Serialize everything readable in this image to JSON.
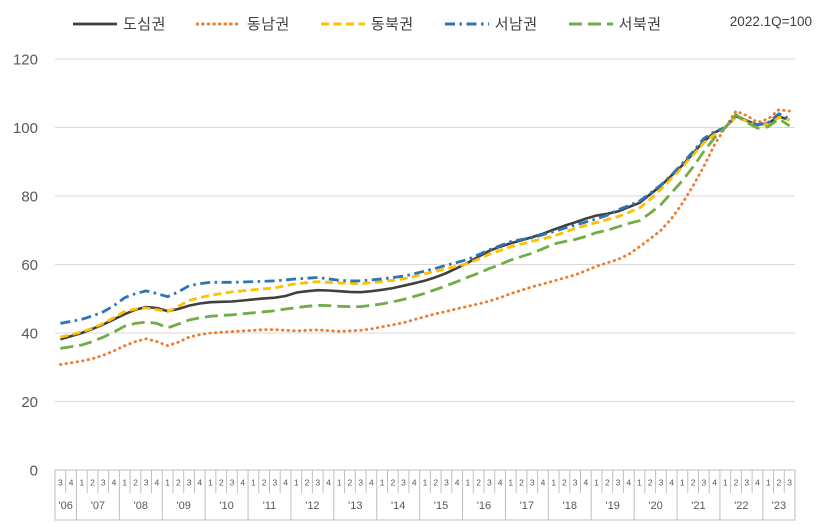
{
  "note": "2022.1Q=100",
  "colors": {
    "dosim": "#404040",
    "dongnam": "#ED7D31",
    "dongbuk": "#FFC000",
    "seonam": "#2E75B6",
    "seobuk": "#70AD47",
    "gridline": "#D9D9D9",
    "axis_box": "#BFBFBF",
    "tick_text": "#595959"
  },
  "chart_data": {
    "type": "line",
    "title": "",
    "xlabel": "",
    "ylabel": "",
    "ylim": [
      0,
      120
    ],
    "yticks": [
      0,
      20,
      40,
      60,
      80,
      100,
      120
    ],
    "grid": "horizontal",
    "legend_position": "top",
    "base_note": "2022.1Q=100",
    "x_axis": {
      "unit": "quarter",
      "years": [
        {
          "label": "'06",
          "quarters": [
            "3",
            "4"
          ]
        },
        {
          "label": "'07",
          "quarters": [
            "1",
            "2",
            "3",
            "4"
          ]
        },
        {
          "label": "'08",
          "quarters": [
            "1",
            "2",
            "3",
            "4"
          ]
        },
        {
          "label": "'09",
          "quarters": [
            "1",
            "2",
            "3",
            "4"
          ]
        },
        {
          "label": "'10",
          "quarters": [
            "1",
            "2",
            "3",
            "4"
          ]
        },
        {
          "label": "'11",
          "quarters": [
            "1",
            "2",
            "3",
            "4"
          ]
        },
        {
          "label": "'12",
          "quarters": [
            "1",
            "2",
            "3",
            "4"
          ]
        },
        {
          "label": "'13",
          "quarters": [
            "1",
            "2",
            "3",
            "4"
          ]
        },
        {
          "label": "'14",
          "quarters": [
            "1",
            "2",
            "3",
            "4"
          ]
        },
        {
          "label": "'15",
          "quarters": [
            "1",
            "2",
            "3",
            "4"
          ]
        },
        {
          "label": "'16",
          "quarters": [
            "1",
            "2",
            "3",
            "4"
          ]
        },
        {
          "label": "'17",
          "quarters": [
            "1",
            "2",
            "3",
            "4"
          ]
        },
        {
          "label": "'18",
          "quarters": [
            "1",
            "2",
            "3",
            "4"
          ]
        },
        {
          "label": "'19",
          "quarters": [
            "1",
            "2",
            "3",
            "4"
          ]
        },
        {
          "label": "'20",
          "quarters": [
            "1",
            "2",
            "3",
            "4"
          ]
        },
        {
          "label": "'21",
          "quarters": [
            "1",
            "2",
            "3",
            "4"
          ]
        },
        {
          "label": "'22",
          "quarters": [
            "1",
            "2",
            "3",
            "4"
          ]
        },
        {
          "label": "'23",
          "quarters": [
            "1",
            "2",
            "3"
          ]
        }
      ]
    },
    "series": [
      {
        "name": "도심권",
        "color": "#404040",
        "line_style": "solid",
        "values": [
          38.2,
          39.1,
          40.0,
          41.2,
          42.5,
          44.0,
          45.5,
          46.8,
          47.6,
          47.3,
          46.4,
          47.0,
          48.0,
          48.6,
          49.0,
          49.1,
          49.2,
          49.5,
          49.8,
          50.1,
          50.3,
          50.8,
          51.8,
          52.2,
          52.5,
          52.4,
          52.2,
          52.0,
          51.9,
          52.2,
          52.6,
          53.1,
          53.8,
          54.5,
          55.3,
          56.3,
          57.5,
          59.0,
          60.5,
          62.3,
          64.0,
          65.2,
          66.2,
          67.1,
          68.0,
          69.0,
          70.2,
          71.3,
          72.3,
          73.4,
          74.3,
          74.8,
          75.5,
          76.8,
          78.0,
          80.5,
          83.0,
          86.0,
          89.0,
          92.5,
          96.0,
          98.5,
          100.0,
          103.3,
          102.0,
          100.8,
          101.2,
          103.2,
          102.2
        ]
      },
      {
        "name": "동남권",
        "color": "#ED7D31",
        "line_style": "dotted",
        "values": [
          30.8,
          31.3,
          31.8,
          32.5,
          33.5,
          34.8,
          36.3,
          37.5,
          38.3,
          37.5,
          36.3,
          37.3,
          38.8,
          39.5,
          40.0,
          40.2,
          40.4,
          40.6,
          40.8,
          41.0,
          41.0,
          40.8,
          40.6,
          40.8,
          40.9,
          40.7,
          40.5,
          40.6,
          40.8,
          41.2,
          41.8,
          42.4,
          43.0,
          43.9,
          44.8,
          45.6,
          46.3,
          47.1,
          47.8,
          48.5,
          49.3,
          50.3,
          51.5,
          52.5,
          53.5,
          54.3,
          55.2,
          56.1,
          57.0,
          58.2,
          59.5,
          60.5,
          61.5,
          63.0,
          65.2,
          67.5,
          70.0,
          73.5,
          77.9,
          83.0,
          88.6,
          95.0,
          100.0,
          104.8,
          103.5,
          101.5,
          102.5,
          105.2,
          104.8
        ]
      },
      {
        "name": "동북권",
        "color": "#FFC000",
        "line_style": "dashed",
        "values": [
          38.8,
          39.5,
          40.3,
          41.4,
          42.8,
          44.5,
          46.3,
          47.0,
          47.3,
          46.8,
          46.2,
          47.8,
          49.5,
          50.3,
          51.0,
          51.5,
          52.0,
          52.3,
          52.6,
          52.9,
          53.2,
          53.8,
          54.4,
          54.7,
          55.0,
          54.8,
          54.6,
          54.5,
          54.4,
          54.7,
          55.0,
          55.4,
          55.8,
          56.5,
          57.3,
          58.0,
          58.8,
          59.5,
          60.3,
          61.6,
          63.0,
          64.1,
          65.2,
          66.0,
          66.8,
          67.5,
          68.3,
          69.4,
          70.5,
          71.4,
          72.3,
          73.1,
          74.0,
          75.2,
          76.5,
          79.0,
          82.0,
          85.2,
          88.5,
          92.0,
          95.5,
          98.0,
          100.0,
          103.0,
          101.8,
          100.5,
          101.0,
          103.0,
          102.3
        ]
      },
      {
        "name": "서남권",
        "color": "#2E75B6",
        "line_style": "dash-dot",
        "values": [
          42.8,
          43.4,
          44.0,
          45.0,
          46.2,
          48.0,
          50.3,
          51.5,
          52.3,
          51.5,
          50.6,
          52.0,
          53.8,
          54.4,
          54.8,
          54.8,
          54.8,
          54.9,
          55.0,
          55.1,
          55.2,
          55.5,
          55.8,
          56.0,
          56.2,
          55.8,
          55.4,
          55.2,
          55.2,
          55.5,
          55.8,
          56.2,
          56.6,
          57.3,
          58.1,
          58.9,
          59.8,
          60.6,
          61.5,
          62.9,
          64.3,
          65.5,
          66.7,
          67.3,
          67.8,
          68.7,
          69.6,
          70.6,
          71.5,
          72.4,
          73.3,
          74.4,
          76.0,
          77.2,
          78.5,
          80.8,
          83.2,
          86.2,
          89.5,
          93.0,
          96.8,
          98.8,
          100.0,
          103.5,
          102.0,
          100.8,
          101.5,
          104.0,
          102.5
        ]
      },
      {
        "name": "서북권",
        "color": "#70AD47",
        "line_style": "long-dash",
        "values": [
          35.5,
          36.0,
          36.5,
          37.5,
          38.8,
          40.3,
          42.0,
          42.8,
          43.2,
          42.8,
          41.5,
          42.6,
          43.8,
          44.4,
          44.9,
          45.1,
          45.3,
          45.6,
          45.9,
          46.2,
          46.5,
          47.0,
          47.4,
          47.8,
          48.1,
          48.0,
          47.8,
          47.7,
          47.7,
          48.1,
          48.5,
          49.1,
          49.8,
          50.7,
          51.6,
          52.7,
          53.8,
          55.0,
          56.3,
          57.5,
          58.8,
          60.0,
          61.3,
          62.3,
          63.3,
          64.6,
          66.0,
          66.7,
          67.3,
          68.2,
          69.3,
          70.0,
          71.0,
          72.0,
          72.8,
          75.0,
          77.5,
          81.0,
          84.5,
          88.5,
          93.0,
          97.0,
          100.0,
          103.8,
          101.5,
          99.8,
          100.2,
          102.5,
          100.5
        ]
      }
    ]
  }
}
